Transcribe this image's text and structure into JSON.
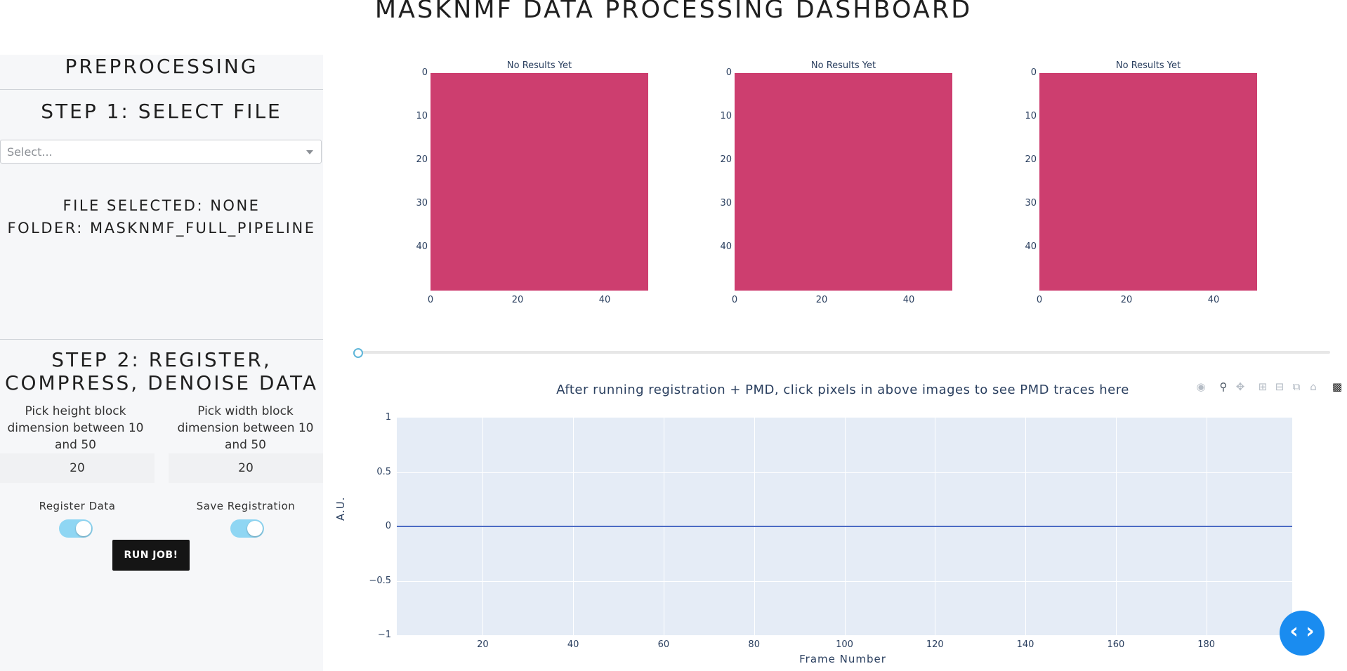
{
  "header": {
    "title": "MASKNMF DATA PROCESSING DASHBOARD"
  },
  "sidebar": {
    "section_title": "PREPROCESSING",
    "step1_title": "STEP 1: SELECT FILE",
    "file_dropdown": {
      "placeholder": "Select..."
    },
    "file_selected": "FILE SELECTED: NONE",
    "folder": "FOLDER: MASKNMF_FULL_PIPELINE",
    "step2_title_line1": "STEP 2: REGISTER,",
    "step2_title_line2": "COMPRESS, DENOISE DATA",
    "height_block": {
      "label_line1": "Pick height block",
      "label_line2": "dimension between 10",
      "label_line3": "and 50",
      "value": "20"
    },
    "width_block": {
      "label_line1": "Pick width block",
      "label_line2": "dimension between 10",
      "label_line3": "and 50",
      "value": "20"
    },
    "register_toggle": {
      "label": "Register Data",
      "on": true
    },
    "save_toggle": {
      "label": "Save Registration",
      "on": true
    },
    "run_button": "RUN JOB!"
  },
  "images": {
    "titles": [
      "No Results Yet",
      "No Results Yet",
      "No Results Yet"
    ],
    "y_ticks": [
      "0",
      "10",
      "20",
      "30",
      "40"
    ],
    "x_ticks": [
      "0",
      "20",
      "40"
    ],
    "fill_color": "#cd3e6f"
  },
  "frame_slider": {
    "value": 0
  },
  "trace_plot": {
    "title": "After running registration + PMD, click pixels in above images to see PMD traces here",
    "modebar_icons": [
      "camera-icon",
      "zoom-icon",
      "pan-icon",
      "zoom-in-icon",
      "zoom-out-icon",
      "autoscale-icon",
      "home-icon",
      "plotly-logo-icon"
    ]
  },
  "chart_data": {
    "type": "line",
    "title": "After running registration + PMD, click pixels in above images to see PMD traces here",
    "xlabel": "Frame Number",
    "ylabel": "A.U.",
    "x_ticks": [
      "20",
      "40",
      "60",
      "80",
      "100",
      "120",
      "140",
      "160",
      "180"
    ],
    "y_ticks": [
      "1",
      "0.5",
      "0",
      "−0.5",
      "−1"
    ],
    "ylim": [
      -1,
      1
    ],
    "series": [
      {
        "values": [
          0,
          0
        ]
      }
    ],
    "grid": true,
    "line_color": "#4c6bc4",
    "background": "#e5ecf6"
  },
  "fab": {
    "icon": "code-icon",
    "symbol": "‹ ›",
    "color": "#1a8cf0"
  }
}
